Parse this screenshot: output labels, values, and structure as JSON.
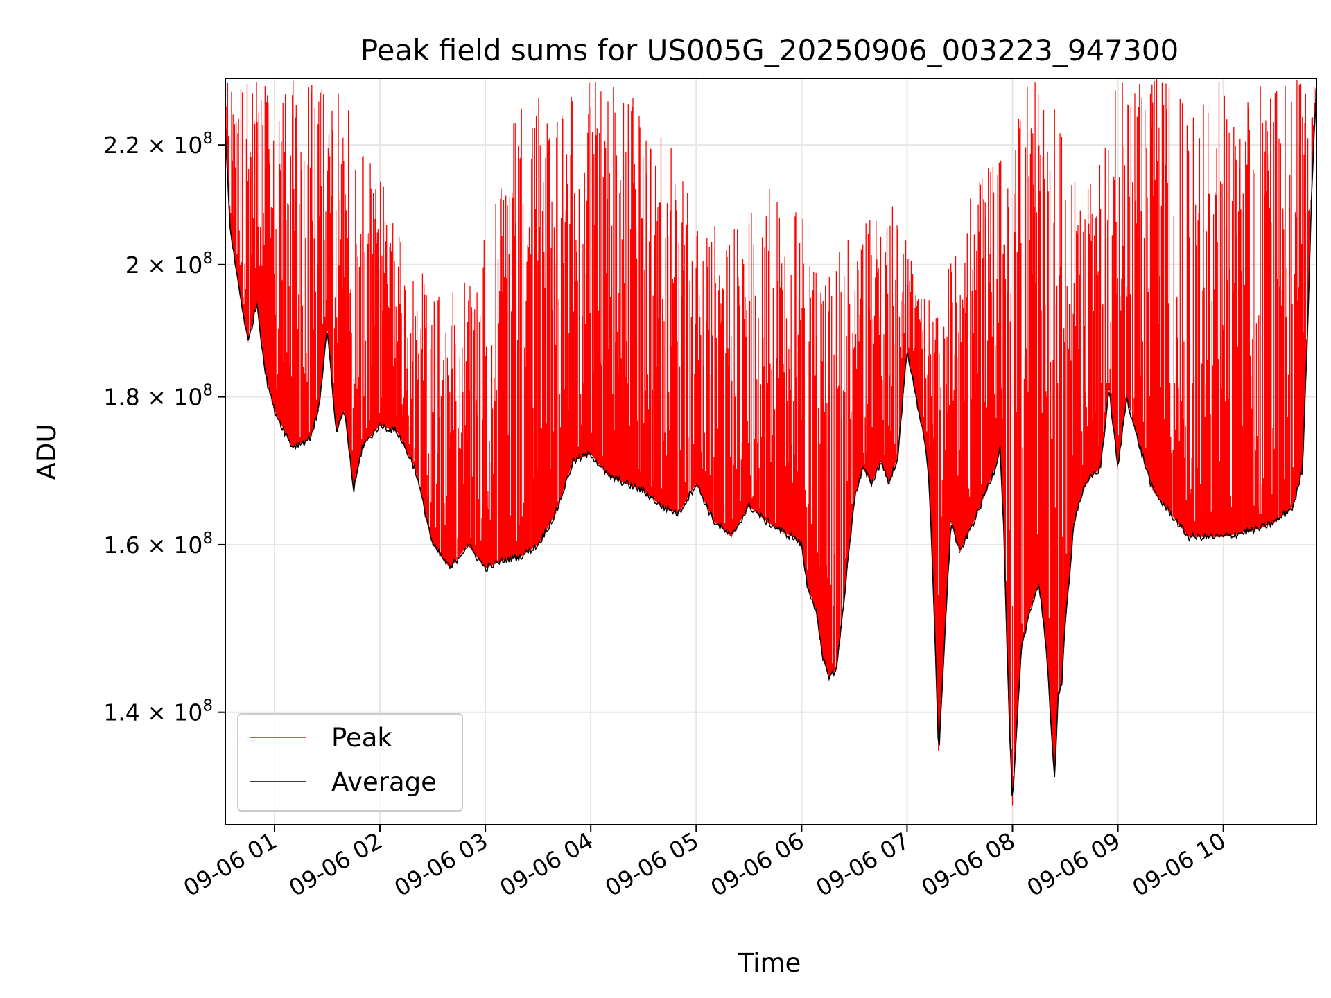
{
  "chart_data": {
    "type": "line",
    "title": "Peak field sums for US005G_20250906_003223_947300",
    "xlabel": "Time",
    "ylabel": "ADU",
    "y_scale": "log",
    "xlim": [
      "09-06 00:32",
      "09-06 10:53"
    ],
    "ylim": [
      128000000,
      232000000
    ],
    "grid": true,
    "legend": "lower-left",
    "x_ticks": [
      {
        "value": "09-06 01:00",
        "label": "09-06 01"
      },
      {
        "value": "09-06 02:00",
        "label": "09-06 02"
      },
      {
        "value": "09-06 03:00",
        "label": "09-06 03"
      },
      {
        "value": "09-06 04:00",
        "label": "09-06 04"
      },
      {
        "value": "09-06 05:00",
        "label": "09-06 05"
      },
      {
        "value": "09-06 06:00",
        "label": "09-06 06"
      },
      {
        "value": "09-06 07:00",
        "label": "09-06 07"
      },
      {
        "value": "09-06 08:00",
        "label": "09-06 08"
      },
      {
        "value": "09-06 09:00",
        "label": "09-06 09"
      },
      {
        "value": "09-06 10:00",
        "label": "09-06 10"
      }
    ],
    "y_ticks": [
      {
        "value": 140000000,
        "mantissa": "1.4",
        "exponent": "8"
      },
      {
        "value": 160000000,
        "mantissa": "1.6",
        "exponent": "8"
      },
      {
        "value": 180000000,
        "mantissa": "1.8",
        "exponent": "8"
      },
      {
        "value": 200000000,
        "mantissa": "2",
        "exponent": "8"
      },
      {
        "value": 220000000,
        "mantissa": "2.2",
        "exponent": "8"
      }
    ],
    "series": [
      {
        "name": "Peak",
        "color": "#ff0000",
        "style": "dense spikes from the average baseline up to the top of the plot",
        "x": [
          "09-06 00:32",
          "09-06 00:40",
          "09-06 00:50",
          "09-06 01:00",
          "09-06 01:10",
          "09-06 01:20",
          "09-06 01:30",
          "09-06 01:40",
          "09-06 02:00",
          "09-06 02:20",
          "09-06 02:40",
          "09-06 03:00",
          "09-06 03:20",
          "09-06 03:40",
          "09-06 04:00",
          "09-06 04:20",
          "09-06 04:40",
          "09-06 05:00",
          "09-06 05:20",
          "09-06 05:40",
          "09-06 06:00",
          "09-06 06:10",
          "09-06 06:30",
          "09-06 06:50",
          "09-06 07:10",
          "09-06 07:30",
          "09-06 07:50",
          "09-06 08:00",
          "09-06 08:20",
          "09-06 08:40",
          "09-06 09:00",
          "09-06 09:20",
          "09-06 09:40",
          "09-06 10:00",
          "09-06 10:20",
          "09-06 10:40",
          "09-06 10:53"
        ],
        "y": [
          232000000,
          232000000,
          232000000,
          232000000,
          232000000,
          232000000,
          232000000,
          228000000,
          215000000,
          200000000,
          195000000,
          205000000,
          232000000,
          232000000,
          232000000,
          232000000,
          225000000,
          210000000,
          205000000,
          215000000,
          210000000,
          200000000,
          205000000,
          212000000,
          195000000,
          205000000,
          225000000,
          230000000,
          232000000,
          210000000,
          232000000,
          232000000,
          232000000,
          232000000,
          232000000,
          232000000,
          232000000
        ]
      },
      {
        "name": "Average",
        "color": "#000000",
        "x": [
          "09-06 00:32",
          "09-06 00:35",
          "09-06 00:40",
          "09-06 00:45",
          "09-06 00:50",
          "09-06 00:55",
          "09-06 01:00",
          "09-06 01:10",
          "09-06 01:20",
          "09-06 01:25",
          "09-06 01:30",
          "09-06 01:35",
          "09-06 01:40",
          "09-06 01:45",
          "09-06 01:50",
          "09-06 02:00",
          "09-06 02:10",
          "09-06 02:20",
          "09-06 02:30",
          "09-06 02:40",
          "09-06 02:50",
          "09-06 03:00",
          "09-06 03:10",
          "09-06 03:20",
          "09-06 03:30",
          "09-06 03:40",
          "09-06 03:50",
          "09-06 04:00",
          "09-06 04:10",
          "09-06 04:20",
          "09-06 04:30",
          "09-06 04:40",
          "09-06 04:50",
          "09-06 05:00",
          "09-06 05:10",
          "09-06 05:20",
          "09-06 05:30",
          "09-06 05:40",
          "09-06 05:50",
          "09-06 05:55",
          "09-06 06:00",
          "09-06 06:03",
          "09-06 06:08",
          "09-06 06:12",
          "09-06 06:16",
          "09-06 06:20",
          "09-06 06:25",
          "09-06 06:30",
          "09-06 06:35",
          "09-06 06:40",
          "09-06 06:45",
          "09-06 06:50",
          "09-06 06:55",
          "09-06 07:00",
          "09-06 07:05",
          "09-06 07:10",
          "09-06 07:12",
          "09-06 07:14",
          "09-06 07:16",
          "09-06 07:18",
          "09-06 07:20",
          "09-06 07:25",
          "09-06 07:30",
          "09-06 07:40",
          "09-06 07:45",
          "09-06 07:50",
          "09-06 07:53",
          "09-06 07:55",
          "09-06 07:58",
          "09-06 08:00",
          "09-06 08:05",
          "09-06 08:10",
          "09-06 08:15",
          "09-06 08:18",
          "09-06 08:20",
          "09-06 08:22",
          "09-06 08:24",
          "09-06 08:26",
          "09-06 08:28",
          "09-06 08:30",
          "09-06 08:35",
          "09-06 08:40",
          "09-06 08:45",
          "09-06 08:50",
          "09-06 08:55",
          "09-06 09:00",
          "09-06 09:02",
          "09-06 09:05",
          "09-06 09:10",
          "09-06 09:20",
          "09-06 09:30",
          "09-06 09:40",
          "09-06 09:50",
          "09-06 10:00",
          "09-06 10:10",
          "09-06 10:20",
          "09-06 10:30",
          "09-06 10:40",
          "09-06 10:45",
          "09-06 10:48",
          "09-06 10:50",
          "09-06 10:53"
        ],
        "y": [
          222000000,
          205000000,
          196000000,
          188000000,
          194000000,
          183000000,
          178000000,
          173000000,
          174000000,
          178000000,
          190000000,
          175000000,
          178000000,
          167000000,
          173000000,
          176000000,
          175000000,
          170000000,
          160000000,
          157000000,
          160000000,
          157000000,
          158000000,
          158500000,
          160000000,
          164000000,
          171000000,
          172000000,
          169000000,
          168000000,
          167000000,
          165000000,
          164000000,
          168000000,
          163000000,
          161000000,
          165000000,
          163000000,
          161500000,
          161000000,
          160000000,
          155000000,
          152000000,
          146000000,
          144000000,
          145000000,
          155000000,
          166000000,
          170000000,
          168000000,
          171000000,
          168000000,
          172000000,
          187000000,
          180000000,
          174000000,
          170000000,
          160000000,
          148000000,
          135000000,
          143000000,
          163000000,
          159000000,
          164000000,
          167000000,
          170000000,
          173000000,
          162000000,
          140000000,
          130000000,
          147000000,
          152000000,
          155000000,
          150000000,
          145000000,
          138000000,
          133000000,
          142000000,
          143000000,
          150000000,
          163000000,
          167000000,
          169000000,
          170000000,
          181000000,
          170000000,
          174000000,
          180000000,
          175000000,
          167000000,
          164000000,
          161000000,
          161000000,
          161000000,
          161500000,
          162000000,
          163000000,
          165000000,
          170000000,
          190000000,
          210000000,
          231000000
        ]
      }
    ]
  }
}
